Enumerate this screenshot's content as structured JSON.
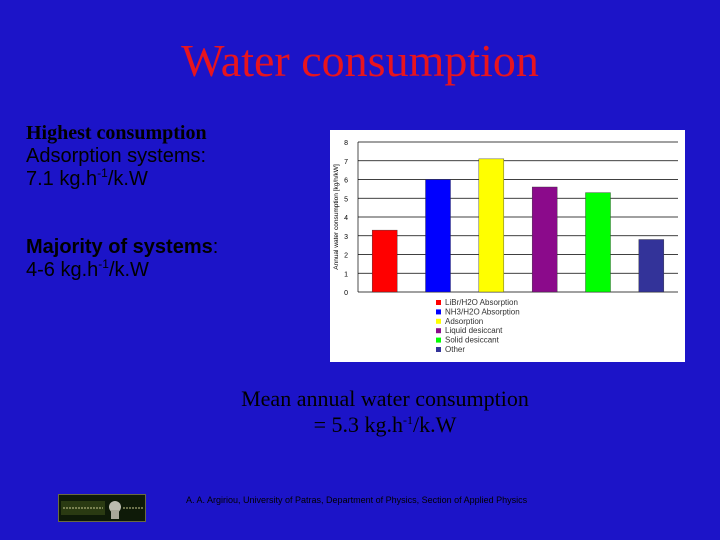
{
  "title": "Water consumption",
  "left": {
    "line1": "Highest consumption",
    "line2": "Adsorption systems:",
    "line3_pre": "7.1 kg.h",
    "line3_sup": "-1",
    "line3_post": "/k.W",
    "line4_bold": "Majority of systems",
    "line4_rest": ":",
    "line5_pre": "4-6 kg.h",
    "line5_sup": "-1",
    "line5_post": "/k.W"
  },
  "mean": {
    "line1": "Mean annual water consumption",
    "line2_pre": "= 5.3 kg.h",
    "line2_sup": "-1",
    "line2_post": "/k.W"
  },
  "footer": "A. A. Argiriou, University of Patras, Department of Physics, Section of Applied Physics",
  "colors": {
    "background": "#1c14c8",
    "title": "#e8141e"
  },
  "chart_data": {
    "type": "bar",
    "ylabel": "Annual water consumption [kg/h/kW]",
    "ylim": [
      0,
      8
    ],
    "yticks": [
      "0",
      "1",
      "2",
      "3",
      "4",
      "5",
      "6",
      "7",
      "8"
    ],
    "grid": true,
    "legend_position": "bottom",
    "series": [
      {
        "name": "LiBr/H2O Absorption",
        "value": 3.3,
        "color": "#ff0000"
      },
      {
        "name": "NH3/H2O Absorption",
        "value": 6.0,
        "color": "#0000ff"
      },
      {
        "name": "Adsorption",
        "value": 7.1,
        "color": "#ffff00"
      },
      {
        "name": "Liquid desiccant",
        "value": 5.6,
        "color": "#8b0a8b"
      },
      {
        "name": "Solid desiccant",
        "value": 5.3,
        "color": "#00ff00"
      },
      {
        "name": "Other",
        "value": 2.8,
        "color": "#333399"
      }
    ]
  }
}
